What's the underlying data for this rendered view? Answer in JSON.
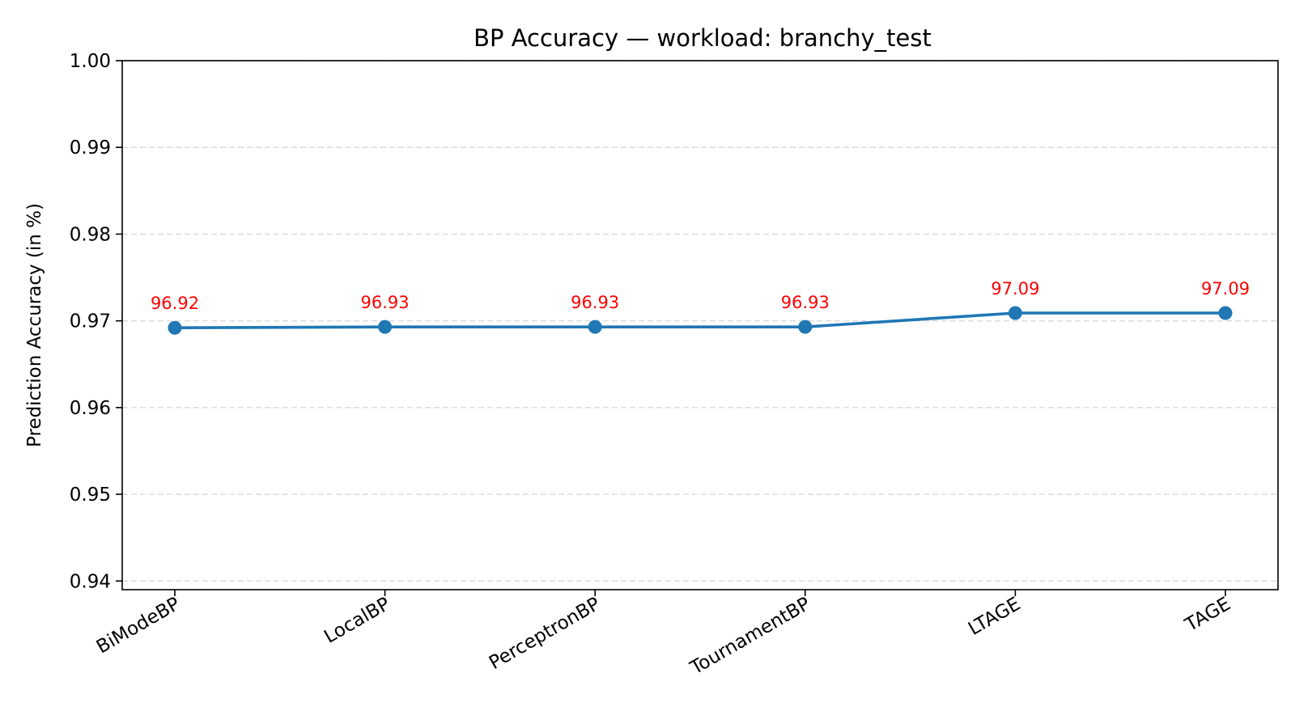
{
  "chart_data": {
    "type": "line",
    "title": "BP Accuracy — workload: branchy_test",
    "xlabel": "",
    "ylabel": "Prediction Accuracy (in %)",
    "categories": [
      "BiModeBP",
      "LocalBP",
      "PerceptronBP",
      "TournamentBP",
      "LTAGE",
      "TAGE"
    ],
    "values": [
      0.9692,
      0.9693,
      0.9693,
      0.9693,
      0.9709,
      0.9709
    ],
    "data_labels": [
      "96.92",
      "96.93",
      "96.93",
      "96.93",
      "97.09",
      "97.09"
    ],
    "ylim": [
      0.939,
      1.0
    ],
    "yticks": [
      0.94,
      0.95,
      0.96,
      0.97,
      0.98,
      0.99,
      1.0
    ],
    "ytick_labels": [
      "0.94",
      "0.95",
      "0.96",
      "0.97",
      "0.98",
      "0.99",
      "1.00"
    ],
    "grid": "y-dashed",
    "legend": "none",
    "line_color": "#1f77b4",
    "label_color": "#ff0000"
  }
}
